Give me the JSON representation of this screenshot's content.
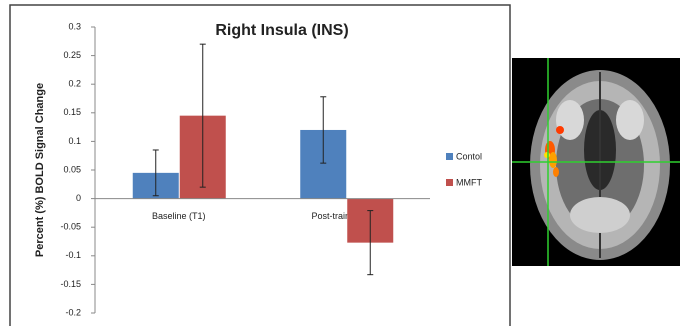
{
  "chart_data": {
    "type": "bar",
    "title": "Right Insula (INS)",
    "y_label": "Percent (%) BOLD Signal Change",
    "categories": [
      "Baseline (T1)",
      "Post-training (T3)"
    ],
    "series": [
      {
        "name": "Contol",
        "color": "#4f81bd",
        "values": [
          0.045,
          0.12
        ],
        "errors": [
          0.04,
          0.058
        ]
      },
      {
        "name": "MMFT",
        "color": "#c0504d",
        "values": [
          0.145,
          -0.077
        ],
        "errors": [
          0.125,
          0.056
        ]
      }
    ],
    "ylim": [
      -0.2,
      0.3
    ],
    "yticks": [
      0.3,
      0.25,
      0.2,
      0.15,
      0.1,
      0.05,
      0,
      -0.05,
      -0.1,
      -0.15,
      -0.2
    ],
    "legend": "right"
  }
}
